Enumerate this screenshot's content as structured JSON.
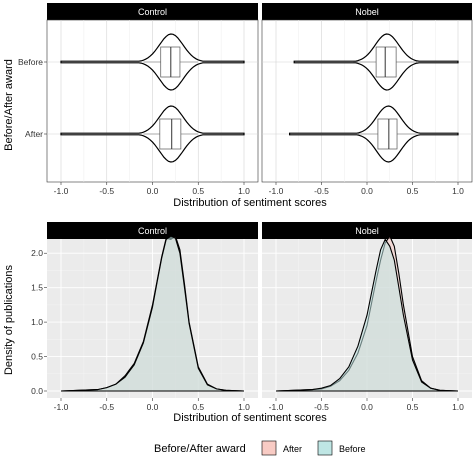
{
  "colors": {
    "after_fill": "#f8cbc4",
    "before_fill": "#bfe6e4",
    "overlap_fill": "#c9cfcd",
    "strip_bg": "#000000",
    "panel_bg_density": "#ebebeb",
    "grid_major": "#d4d4d4",
    "grid_minor": "#ececec",
    "line": "#000000"
  },
  "chart_data": [
    {
      "type": "violin",
      "facets": [
        "Control",
        "Nobel"
      ],
      "categories": [
        "Before",
        "After"
      ],
      "ylabel": "Before/After award",
      "xlabel": "Distribution of sentiment scores",
      "xlim": [
        -1.0,
        1.0
      ],
      "x_ticks": [
        "-1.0",
        "-0.5",
        "0.0",
        "0.5",
        "1.0"
      ],
      "grid": true,
      "panels": [
        {
          "facet": "Control",
          "groups": [
            {
              "category": "Before",
              "min": -1.0,
              "q1": 0.09,
              "median": 0.2,
              "q3": 0.3,
              "max": 1.0,
              "whisker_low": -0.1,
              "whisker_high": 0.5
            },
            {
              "category": "After",
              "min": -1.0,
              "q1": 0.08,
              "median": 0.21,
              "q3": 0.31,
              "max": 1.0,
              "whisker_low": -0.1,
              "whisker_high": 0.5
            }
          ]
        },
        {
          "facet": "Nobel",
          "groups": [
            {
              "category": "Before",
              "min": -0.8,
              "q1": 0.1,
              "median": 0.2,
              "q3": 0.32,
              "max": 1.0,
              "whisker_low": -0.15,
              "whisker_high": 0.55
            },
            {
              "category": "After",
              "min": -0.85,
              "q1": 0.12,
              "median": 0.24,
              "q3": 0.33,
              "max": 1.0,
              "whisker_low": -0.1,
              "whisker_high": 0.55
            }
          ]
        }
      ]
    },
    {
      "type": "area",
      "facets": [
        "Control",
        "Nobel"
      ],
      "ylabel": "Density of publications",
      "xlabel": "Distribution of sentiment scores",
      "xlim": [
        -1.0,
        1.0
      ],
      "ylim": [
        0.0,
        2.4
      ],
      "x_ticks": [
        "-1.0",
        "-0.5",
        "0.0",
        "0.5",
        "1.0"
      ],
      "y_ticks": [
        "0.0",
        "0.5",
        "1.0",
        "1.5",
        "2.0"
      ],
      "grid": true,
      "legend": {
        "title": "Before/After award",
        "position": "bottom",
        "entries": [
          "After",
          "Before"
        ]
      },
      "panels": [
        {
          "facet": "Control",
          "series": [
            {
              "name": "After",
              "x": [
                -1.0,
                -0.8,
                -0.6,
                -0.5,
                -0.4,
                -0.3,
                -0.2,
                -0.1,
                0.0,
                0.05,
                0.1,
                0.15,
                0.2,
                0.25,
                0.3,
                0.35,
                0.4,
                0.5,
                0.6,
                0.7,
                0.8,
                1.0
              ],
              "y": [
                0.0,
                0.01,
                0.02,
                0.05,
                0.1,
                0.22,
                0.4,
                0.72,
                1.25,
                1.6,
                1.95,
                2.22,
                2.2,
                2.25,
                2.05,
                1.55,
                1.0,
                0.35,
                0.1,
                0.03,
                0.01,
                0.0
              ]
            },
            {
              "name": "Before",
              "x": [
                -1.0,
                -0.8,
                -0.6,
                -0.5,
                -0.4,
                -0.3,
                -0.2,
                -0.1,
                0.0,
                0.05,
                0.1,
                0.15,
                0.2,
                0.25,
                0.3,
                0.35,
                0.4,
                0.5,
                0.6,
                0.7,
                0.8,
                1.0
              ],
              "y": [
                0.0,
                0.01,
                0.02,
                0.05,
                0.1,
                0.2,
                0.38,
                0.7,
                1.22,
                1.58,
                1.93,
                2.2,
                2.25,
                2.22,
                2.0,
                1.5,
                0.98,
                0.33,
                0.09,
                0.03,
                0.01,
                0.0
              ]
            }
          ]
        },
        {
          "facet": "Nobel",
          "series": [
            {
              "name": "After",
              "x": [
                -1.0,
                -0.8,
                -0.6,
                -0.5,
                -0.4,
                -0.3,
                -0.2,
                -0.1,
                0.0,
                0.1,
                0.15,
                0.2,
                0.25,
                0.3,
                0.35,
                0.4,
                0.5,
                0.6,
                0.7,
                0.8,
                1.0
              ],
              "y": [
                0.0,
                0.01,
                0.02,
                0.03,
                0.07,
                0.15,
                0.3,
                0.55,
                0.95,
                1.6,
                1.9,
                2.15,
                2.25,
                2.1,
                1.7,
                1.25,
                0.5,
                0.15,
                0.04,
                0.01,
                0.0
              ]
            },
            {
              "name": "Before",
              "x": [
                -1.0,
                -0.8,
                -0.6,
                -0.5,
                -0.4,
                -0.3,
                -0.2,
                -0.1,
                0.0,
                0.1,
                0.15,
                0.2,
                0.25,
                0.3,
                0.35,
                0.4,
                0.5,
                0.6,
                0.7,
                0.8,
                1.0
              ],
              "y": [
                0.0,
                0.01,
                0.02,
                0.04,
                0.08,
                0.18,
                0.35,
                0.65,
                1.1,
                1.75,
                2.05,
                2.2,
                2.1,
                1.9,
                1.5,
                1.1,
                0.45,
                0.13,
                0.04,
                0.01,
                0.0
              ]
            }
          ]
        }
      ]
    }
  ]
}
